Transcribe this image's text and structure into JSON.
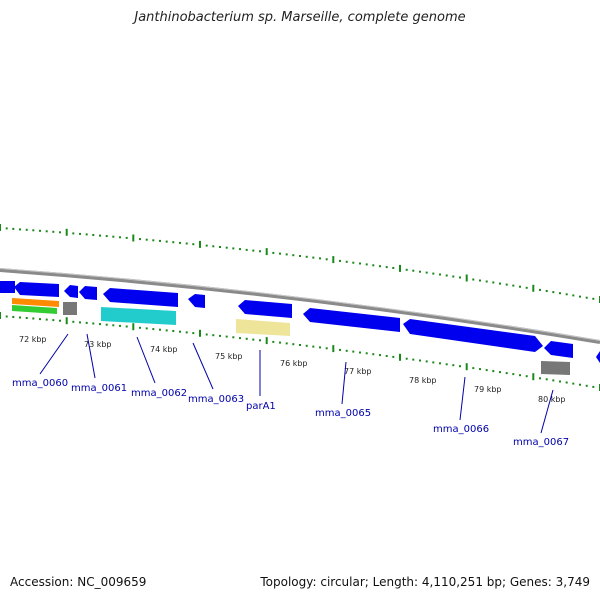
{
  "title": "Janthinobacterium sp. Marseille, complete genome",
  "footer": {
    "accession": "Accession: NC_009659",
    "stats": "Topology: circular; Length: 4,110,251 bp; Genes: 3,749"
  },
  "colors": {
    "backbone": "#8a8a8a",
    "gene": "#0000ee",
    "tick": "#1a8a1a",
    "label": "#0000aa",
    "feature_orange": "#ff8c00",
    "feature_green": "#33cc33",
    "feature_cyan": "#22cccc",
    "feature_yellow": "#eee49a",
    "feature_gray": "#777777"
  },
  "scale": {
    "labels": [
      "72 kbp",
      "73 kbp",
      "74 kbp",
      "75 kbp",
      "76 kbp",
      "77 kbp",
      "78 kbp",
      "79 kbp",
      "80 kbp"
    ]
  },
  "genes": [
    {
      "name": "mma_0060"
    },
    {
      "name": "mma_0061"
    },
    {
      "name": "mma_0062"
    },
    {
      "name": "mma_0063"
    },
    {
      "name": "parA1"
    },
    {
      "name": "mma_0065"
    },
    {
      "name": "mma_0066"
    },
    {
      "name": "mma_0067"
    }
  ]
}
